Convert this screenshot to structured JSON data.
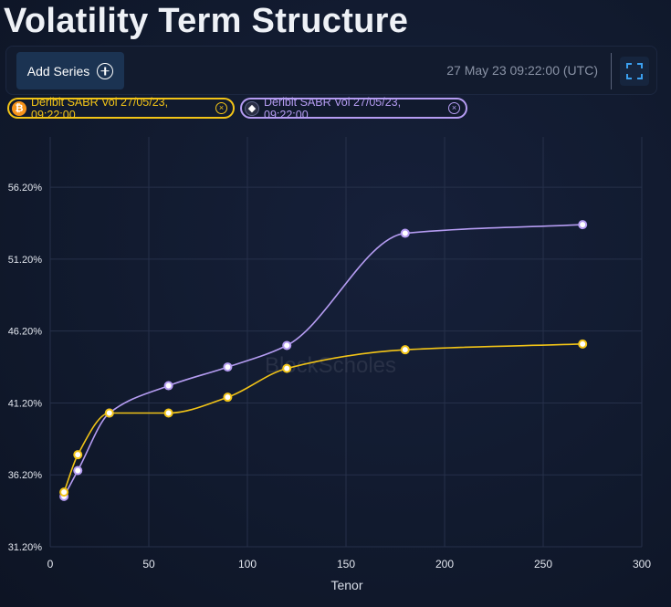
{
  "page": {
    "title": "Volatility Term Structure"
  },
  "toolbar": {
    "add_series_label": "Add Series",
    "add_icon": "plus-circle-icon",
    "timestamp": "27 May 23 09:22:00 (UTC)",
    "fullscreen_icon": "expand-icon"
  },
  "legend": [
    {
      "label": "Deribit SABR Vol 27/05/23, 09:22:00",
      "icon": "bitcoin-icon",
      "icon_glyph": "₿",
      "color": "#f2c417"
    },
    {
      "label": "Deribit SABR Vol 27/05/23, 09:22:00",
      "icon": "ethereum-icon",
      "icon_glyph": "◆",
      "color": "#b59cf2"
    }
  ],
  "watermark": "BlockScholes",
  "chart_data": {
    "type": "line",
    "xlabel": "Tenor",
    "ylabel": "",
    "xlim": [
      0,
      300
    ],
    "ylim": [
      31.2,
      59.7
    ],
    "x_ticks": [
      0,
      50,
      100,
      150,
      200,
      250,
      300
    ],
    "y_ticks": [
      31.2,
      36.2,
      41.2,
      46.2,
      51.2,
      56.2
    ],
    "y_tick_labels": [
      "31.20%",
      "36.20%",
      "41.20%",
      "46.20%",
      "51.20%",
      "56.20%"
    ],
    "grid": true,
    "series": [
      {
        "color": "#f2c417",
        "x": [
          7,
          14,
          30,
          60,
          90,
          120,
          180,
          270
        ],
        "values": [
          35.0,
          37.6,
          40.5,
          40.5,
          41.6,
          43.6,
          44.9,
          45.3
        ]
      },
      {
        "color": "#b59cf2",
        "x": [
          7,
          14,
          30,
          60,
          90,
          120,
          180,
          270
        ],
        "values": [
          34.7,
          36.5,
          40.5,
          42.4,
          43.7,
          45.2,
          53.0,
          53.6
        ]
      }
    ]
  }
}
